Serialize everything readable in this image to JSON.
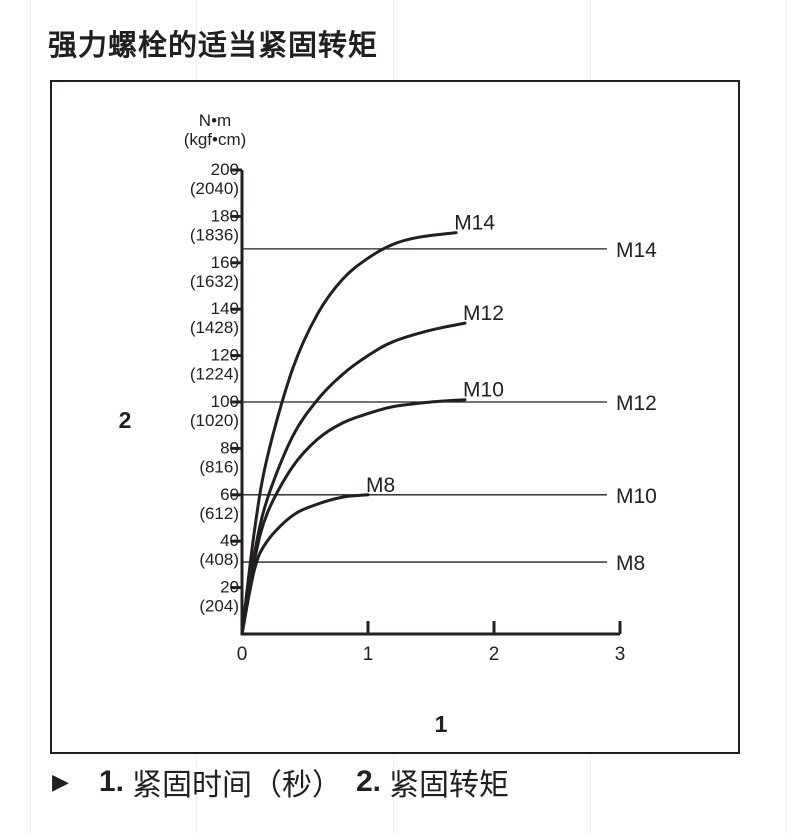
{
  "title": "强力螺栓的适当紧固转矩",
  "chart_data": {
    "type": "line",
    "x_axis": {
      "callout": "1",
      "ticks": [
        0,
        1,
        2,
        3
      ],
      "xlim": [
        0,
        3
      ]
    },
    "y_axis": {
      "callout": "2",
      "unit": "N•m",
      "unit_secondary": "(kgf•cm)",
      "ylim": [
        0,
        200
      ],
      "ticks": [
        {
          "value": 20,
          "label": "20",
          "label_secondary": "(204)"
        },
        {
          "value": 40,
          "label": "40",
          "label_secondary": "(408)"
        },
        {
          "value": 60,
          "label": "60",
          "label_secondary": "(612)"
        },
        {
          "value": 80,
          "label": "80",
          "label_secondary": "(816)"
        },
        {
          "value": 100,
          "label": "100",
          "label_secondary": "(1020)"
        },
        {
          "value": 120,
          "label": "120",
          "label_secondary": "(1224)"
        },
        {
          "value": 140,
          "label": "140",
          "label_secondary": "(1428)"
        },
        {
          "value": 160,
          "label": "160",
          "label_secondary": "(1632)"
        },
        {
          "value": 180,
          "label": "180",
          "label_secondary": "(1836)"
        },
        {
          "value": 200,
          "label": "200",
          "label_secondary": "(2040)"
        }
      ]
    },
    "series": [
      {
        "name": "M8",
        "points": [
          [
            0,
            0
          ],
          [
            0.1,
            28
          ],
          [
            0.2,
            40
          ],
          [
            0.4,
            51
          ],
          [
            0.6,
            56
          ],
          [
            0.8,
            59
          ],
          [
            1.0,
            60
          ]
        ]
      },
      {
        "name": "M10",
        "points": [
          [
            0,
            0
          ],
          [
            0.1,
            32
          ],
          [
            0.2,
            52
          ],
          [
            0.4,
            72
          ],
          [
            0.6,
            84
          ],
          [
            0.8,
            91
          ],
          [
            1.0,
            95
          ],
          [
            1.2,
            98
          ],
          [
            1.5,
            100
          ],
          [
            1.77,
            101
          ]
        ]
      },
      {
        "name": "M12",
        "points": [
          [
            0,
            0
          ],
          [
            0.1,
            35
          ],
          [
            0.2,
            58
          ],
          [
            0.4,
            85
          ],
          [
            0.6,
            101
          ],
          [
            0.8,
            112
          ],
          [
            1.0,
            120
          ],
          [
            1.2,
            126
          ],
          [
            1.5,
            131
          ],
          [
            1.77,
            134
          ]
        ]
      },
      {
        "name": "M14",
        "points": [
          [
            0,
            0
          ],
          [
            0.1,
            45
          ],
          [
            0.2,
            76
          ],
          [
            0.4,
            114
          ],
          [
            0.6,
            138
          ],
          [
            0.8,
            153
          ],
          [
            1.0,
            162
          ],
          [
            1.2,
            168
          ],
          [
            1.4,
            171
          ],
          [
            1.7,
            173
          ]
        ]
      }
    ],
    "reference_lines": [
      {
        "label": "M14",
        "y": 166
      },
      {
        "label": "M12",
        "y": 100
      },
      {
        "label": "M10",
        "y": 60
      },
      {
        "label": "M8",
        "y": 31
      }
    ]
  },
  "legend": [
    {
      "num": "1.",
      "text": "紧固时间（秒）"
    },
    {
      "num": "2.",
      "text": "紧固转矩"
    }
  ]
}
